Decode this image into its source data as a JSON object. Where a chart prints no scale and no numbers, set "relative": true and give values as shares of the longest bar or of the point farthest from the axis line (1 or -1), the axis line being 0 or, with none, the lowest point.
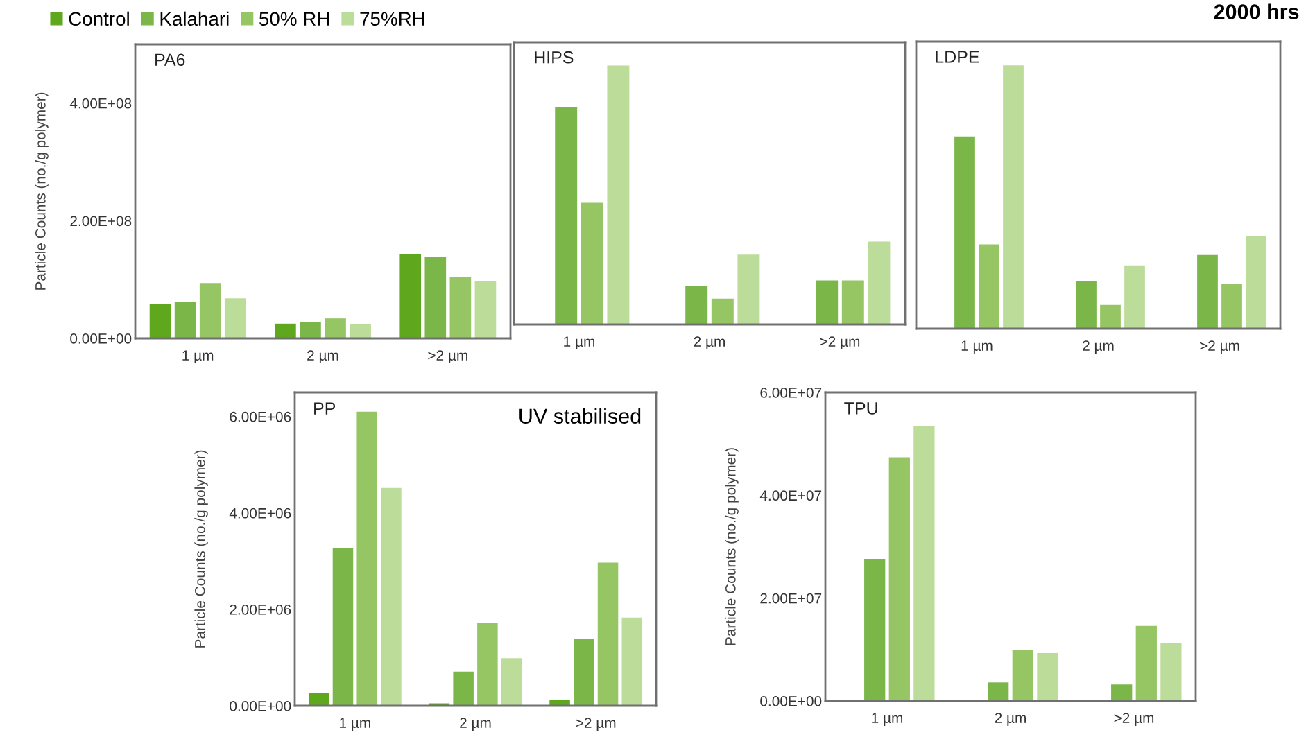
{
  "chart_data": [
    {
      "type": "bar",
      "title": "PA6",
      "ylabel": "Particle Counts (no./g polymer)",
      "categories": [
        "1 µm",
        "2 µm",
        ">2 µm"
      ],
      "legend": "top",
      "annotations": [
        "2000 hrs"
      ],
      "series": [
        {
          "name": "Control",
          "color": "#5fa81e",
          "values": [
            59000000,
            25000000,
            144000000
          ]
        },
        {
          "name": "Kalahari",
          "color": "#7ab648",
          "values": [
            62000000,
            28000000,
            138000000
          ]
        },
        {
          "name": "50% RH",
          "color": "#96c564",
          "values": [
            94000000,
            34000000,
            104000000
          ]
        },
        {
          "name": "75%RH",
          "color": "#bcdc9a",
          "values": [
            68000000,
            24000000,
            97000000
          ]
        }
      ],
      "ylim": [
        0,
        500000000
      ],
      "yticks": [
        {
          "value": 0,
          "label": "0.00E+00"
        },
        {
          "value": 200000000,
          "label": "2.00E+08"
        },
        {
          "value": 400000000,
          "label": "4.00E+08"
        }
      ]
    },
    {
      "type": "bar",
      "title": "HIPS",
      "categories": [
        "1 µm",
        "2 µm",
        ">2 µm"
      ],
      "relative": true,
      "tick_labels": "x",
      "series": [
        {
          "color": "#5fa81e",
          "values": [
            null,
            null,
            null
          ]
        },
        {
          "color": "#7ab648",
          "values": [
            0.84,
            0.15,
            0.17
          ]
        },
        {
          "color": "#96c564",
          "values": [
            0.47,
            0.1,
            0.17
          ]
        },
        {
          "color": "#bcdc9a",
          "values": [
            1,
            0.27,
            0.32
          ]
        }
      ]
    },
    {
      "type": "bar",
      "title": "LDPE",
      "categories": [
        "1 µm",
        "2 µm",
        ">2 µm"
      ],
      "relative": true,
      "tick_labels": "x",
      "series": [
        {
          "color": "#5fa81e",
          "values": [
            null,
            null,
            null
          ]
        },
        {
          "color": "#7ab648",
          "values": [
            0.73,
            0.18,
            0.28
          ]
        },
        {
          "color": "#96c564",
          "values": [
            0.32,
            0.09,
            0.17
          ]
        },
        {
          "color": "#bcdc9a",
          "values": [
            1,
            0.24,
            0.35
          ]
        }
      ]
    },
    {
      "type": "bar",
      "title": "PP",
      "ylabel": "Particle Counts (no./g polymer)",
      "categories": [
        "1 µm",
        "2 µm",
        ">2 µm"
      ],
      "annotations": [
        "UV stabilised"
      ],
      "series": [
        {
          "color": "#5fa81e",
          "values": [
            270000,
            50000,
            130000
          ]
        },
        {
          "color": "#7ab648",
          "values": [
            3270000,
            710000,
            1380000
          ]
        },
        {
          "color": "#96c564",
          "values": [
            6100000,
            1710000,
            2970000
          ]
        },
        {
          "color": "#bcdc9a",
          "values": [
            4520000,
            990000,
            1830000
          ]
        }
      ],
      "ylim": [
        0,
        6500000
      ],
      "yticks": [
        {
          "value": 0,
          "label": "0.00E+00"
        },
        {
          "value": 2000000,
          "label": "2.00E+06"
        },
        {
          "value": 4000000,
          "label": "4.00E+06"
        },
        {
          "value": 6000000,
          "label": "6.00E+06"
        }
      ]
    },
    {
      "type": "bar",
      "title": "TPU",
      "ylabel": "Particle Counts (no./g polymer)",
      "categories": [
        "1 µm",
        "2 µm",
        ">2 µm"
      ],
      "series": [
        {
          "color": "#5fa81e",
          "values": [
            null,
            null,
            null
          ]
        },
        {
          "color": "#7ab648",
          "values": [
            27500000,
            3600000,
            3200000
          ]
        },
        {
          "color": "#96c564",
          "values": [
            47400000,
            9900000,
            14600000
          ]
        },
        {
          "color": "#bcdc9a",
          "values": [
            53500000,
            9300000,
            11200000
          ]
        }
      ],
      "ylim": [
        0,
        60000000
      ],
      "yticks": [
        {
          "value": 0,
          "label": "0.00E+00"
        },
        {
          "value": 20000000,
          "label": "2.00E+07"
        },
        {
          "value": 40000000,
          "label": "4.00E+07"
        },
        {
          "value": 60000000,
          "label": "6.00E+07"
        }
      ]
    }
  ]
}
